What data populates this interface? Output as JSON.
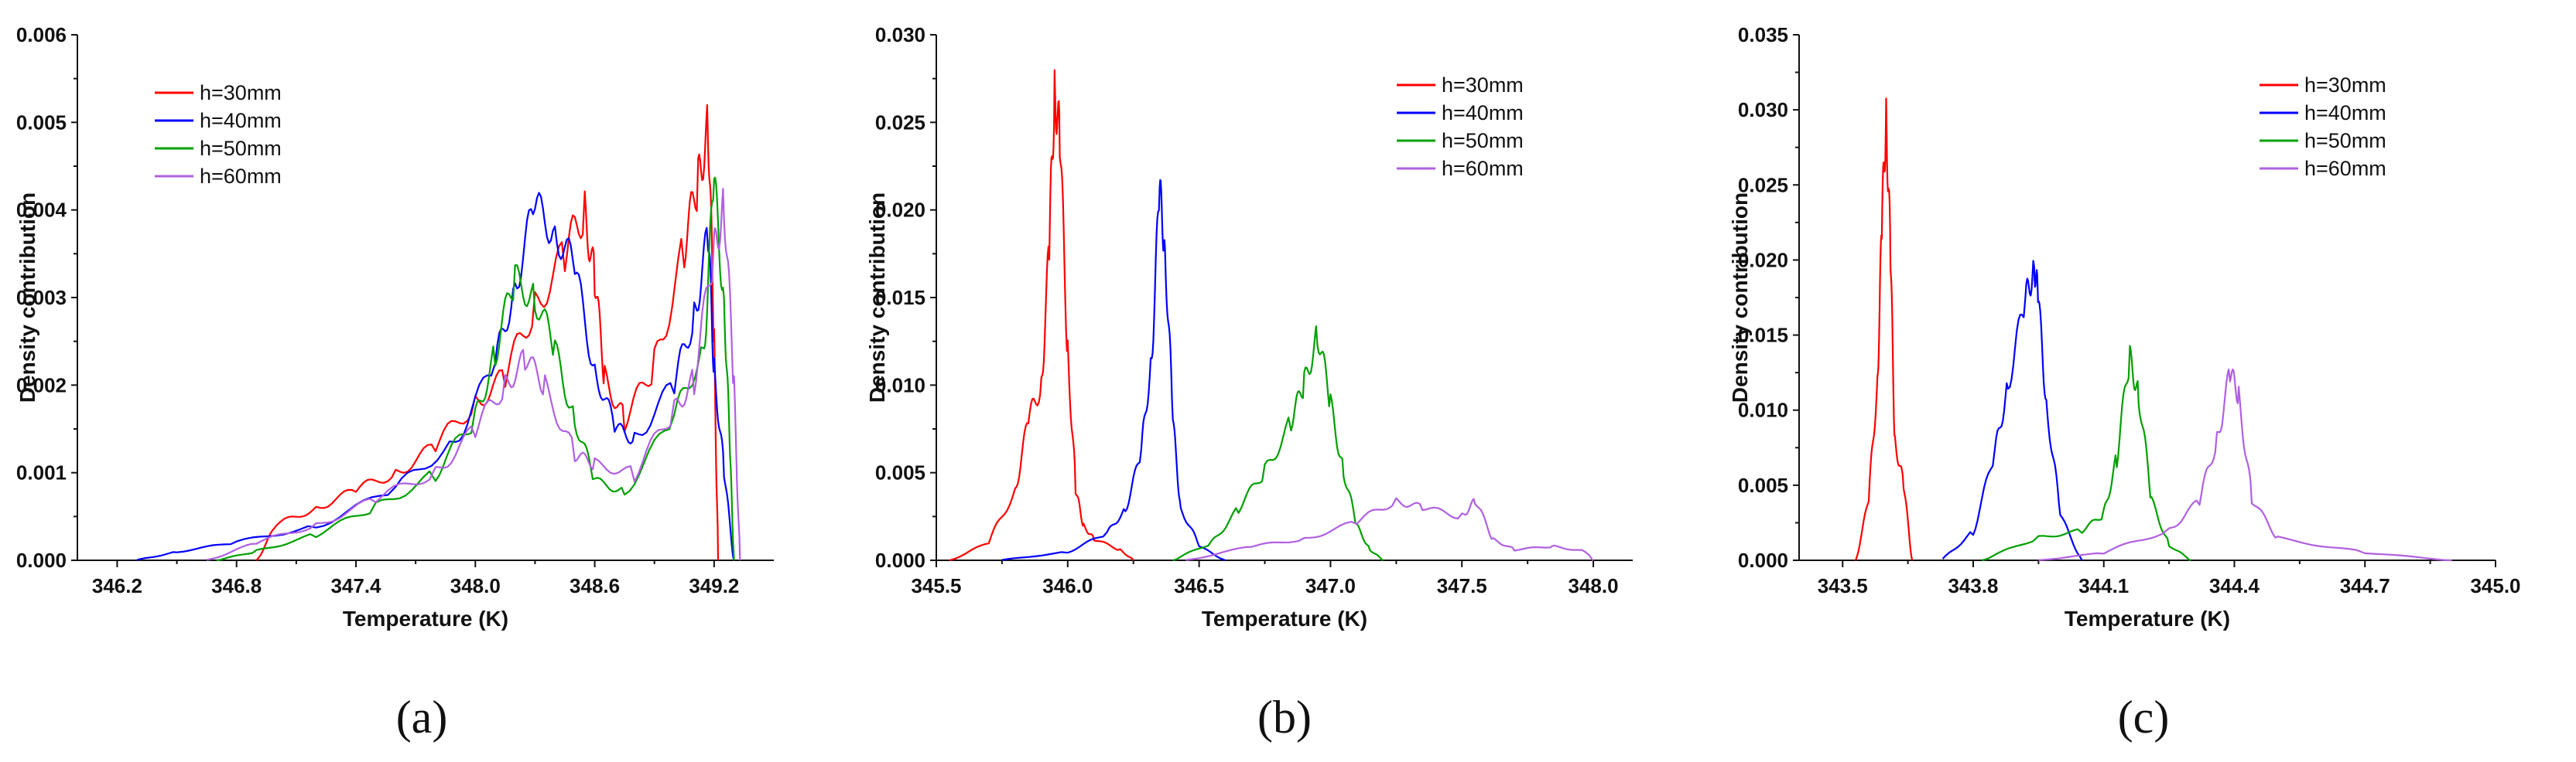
{
  "chart_data": [
    {
      "type": "line",
      "panel_label": "(a)",
      "xlabel": "Temperature (K)",
      "ylabel": "Density contribution",
      "xlim": [
        346.0,
        349.5
      ],
      "ylim": [
        0,
        0.006
      ],
      "xticks": [
        346.2,
        346.8,
        347.4,
        348.0,
        348.6,
        349.2
      ],
      "xtick_labels": [
        "346.2",
        "346.8",
        "347.4",
        "348.0",
        "348.6",
        "349.2"
      ],
      "yticks": [
        0,
        0.001,
        0.002,
        0.003,
        0.004,
        0.005,
        0.006
      ],
      "ytick_labels": [
        "0.000",
        "0.001",
        "0.002",
        "0.003",
        "0.004",
        "0.005",
        "0.006"
      ],
      "legend_position": "top-left",
      "series": [
        {
          "name": "h=30mm",
          "color": "#ff0000",
          "x": [
            346.9,
            347.0,
            347.2,
            347.4,
            347.6,
            347.8,
            348.0,
            348.15,
            348.3,
            348.45,
            348.55,
            348.6,
            348.65,
            348.75,
            348.9,
            349.05,
            349.12,
            349.17,
            349.2,
            349.22
          ],
          "y": [
            0.0,
            0.0004,
            0.0006,
            0.0008,
            0.001,
            0.0013,
            0.0018,
            0.0021,
            0.0029,
            0.0035,
            0.004,
            0.0032,
            0.0021,
            0.0016,
            0.0022,
            0.0036,
            0.0043,
            0.005,
            0.0025,
            0.0
          ]
        },
        {
          "name": "h=40mm",
          "color": "#0000ff",
          "x": [
            346.3,
            346.5,
            346.8,
            347.2,
            347.6,
            347.9,
            348.1,
            348.2,
            348.3,
            348.4,
            348.5,
            348.6,
            348.7,
            348.8,
            349.0,
            349.1,
            349.17,
            349.2,
            349.25,
            349.3
          ],
          "y": [
            0.0,
            0.0001,
            0.0002,
            0.0004,
            0.0008,
            0.0014,
            0.0022,
            0.0032,
            0.004,
            0.0038,
            0.0033,
            0.0022,
            0.0015,
            0.0014,
            0.002,
            0.0028,
            0.0037,
            0.0022,
            0.001,
            0.0
          ]
        },
        {
          "name": "h=50mm",
          "color": "#00a000",
          "x": [
            346.7,
            346.9,
            347.2,
            347.5,
            347.8,
            348.0,
            348.1,
            348.2,
            348.3,
            348.4,
            348.5,
            348.6,
            348.75,
            349.0,
            349.15,
            349.2,
            349.25,
            349.28,
            349.3
          ],
          "y": [
            0.0,
            0.0001,
            0.0003,
            0.0006,
            0.001,
            0.0016,
            0.0024,
            0.0032,
            0.003,
            0.0024,
            0.0016,
            0.0009,
            0.0008,
            0.0016,
            0.0025,
            0.0043,
            0.003,
            0.0012,
            0.0
          ]
        },
        {
          "name": "h=60mm",
          "color": "#b060e0",
          "x": [
            346.65,
            346.9,
            347.2,
            347.5,
            347.8,
            348.0,
            348.15,
            348.25,
            348.35,
            348.5,
            348.6,
            348.8,
            349.0,
            349.1,
            349.2,
            349.25,
            349.3,
            349.33
          ],
          "y": [
            0.0,
            0.0002,
            0.0004,
            0.0007,
            0.001,
            0.0015,
            0.002,
            0.0023,
            0.002,
            0.0012,
            0.0011,
            0.001,
            0.0017,
            0.0021,
            0.0035,
            0.0041,
            0.002,
            0.0
          ]
        }
      ]
    },
    {
      "type": "line",
      "panel_label": "(b)",
      "xlabel": "Temperature (K)",
      "ylabel": "Density contribution",
      "xlim": [
        345.5,
        348.15
      ],
      "ylim": [
        0,
        0.03
      ],
      "xticks": [
        345.5,
        346.0,
        346.5,
        347.0,
        347.5,
        348.0
      ],
      "xtick_labels": [
        "345.5",
        "346.0",
        "346.5",
        "347.0",
        "347.5",
        "348.0"
      ],
      "yticks": [
        0,
        0.005,
        0.01,
        0.015,
        0.02,
        0.025,
        0.03
      ],
      "ytick_labels": [
        "0.000",
        "0.005",
        "0.010",
        "0.015",
        "0.020",
        "0.025",
        "0.030"
      ],
      "legend_position": "top-right",
      "series": [
        {
          "name": "h=30mm",
          "color": "#ff0000",
          "x": [
            345.55,
            345.7,
            345.8,
            345.85,
            345.9,
            345.93,
            345.95,
            345.97,
            346.0,
            346.03,
            346.06,
            346.1,
            346.2,
            346.25
          ],
          "y": [
            0.0,
            0.001,
            0.004,
            0.008,
            0.01,
            0.018,
            0.027,
            0.024,
            0.012,
            0.004,
            0.002,
            0.0012,
            0.0006,
            0.0
          ]
        },
        {
          "name": "h=40mm",
          "color": "#0000ff",
          "x": [
            345.75,
            346.0,
            346.15,
            346.22,
            346.28,
            346.32,
            346.35,
            346.37,
            346.4,
            346.43,
            346.5,
            346.6
          ],
          "y": [
            0.0,
            0.0005,
            0.0015,
            0.003,
            0.006,
            0.012,
            0.021,
            0.018,
            0.008,
            0.003,
            0.0008,
            0.0
          ]
        },
        {
          "name": "h=50mm",
          "color": "#00a000",
          "x": [
            346.4,
            346.55,
            346.65,
            346.75,
            346.85,
            346.9,
            346.95,
            347.0,
            347.05,
            347.1,
            347.15,
            347.2
          ],
          "y": [
            0.0,
            0.001,
            0.003,
            0.005,
            0.008,
            0.01,
            0.013,
            0.009,
            0.005,
            0.002,
            0.0006,
            0.0
          ]
        },
        {
          "name": "h=60mm",
          "color": "#b060e0",
          "x": [
            346.45,
            346.7,
            346.9,
            347.1,
            347.25,
            347.35,
            347.5,
            347.55,
            347.62,
            347.7,
            347.85,
            347.97,
            348.0
          ],
          "y": [
            0.0,
            0.0008,
            0.0012,
            0.0022,
            0.0034,
            0.003,
            0.0025,
            0.0034,
            0.0012,
            0.0006,
            0.0008,
            0.0005,
            0.0
          ]
        }
      ]
    },
    {
      "type": "line",
      "panel_label": "(c)",
      "xlabel": "Temperature (K)",
      "ylabel": "Density contribution",
      "xlim": [
        343.4,
        345.0
      ],
      "ylim": [
        0,
        0.035
      ],
      "xticks": [
        343.5,
        343.8,
        344.1,
        344.4,
        344.7,
        345.0
      ],
      "xtick_labels": [
        "343.5",
        "343.8",
        "344.1",
        "344.4",
        "344.7",
        "345.0"
      ],
      "yticks": [
        0,
        0.005,
        0.01,
        0.015,
        0.02,
        0.025,
        0.03,
        0.035
      ],
      "ytick_labels": [
        "0.000",
        "0.005",
        "0.010",
        "0.015",
        "0.020",
        "0.025",
        "0.030",
        "0.035"
      ],
      "legend_position": "top-right",
      "series": [
        {
          "name": "h=30mm",
          "color": "#ff0000",
          "x": [
            343.53,
            343.56,
            343.58,
            343.59,
            343.6,
            343.61,
            343.62,
            343.64,
            343.66
          ],
          "y": [
            0.0,
            0.004,
            0.012,
            0.022,
            0.03,
            0.02,
            0.008,
            0.005,
            0.0
          ]
        },
        {
          "name": "h=40mm",
          "color": "#0000ff",
          "x": [
            343.73,
            343.8,
            343.85,
            343.88,
            343.92,
            343.94,
            343.95,
            343.97,
            344.0,
            344.05
          ],
          "y": [
            0.0,
            0.002,
            0.007,
            0.012,
            0.017,
            0.02,
            0.017,
            0.01,
            0.003,
            0.0
          ]
        },
        {
          "name": "h=50mm",
          "color": "#00a000",
          "x": [
            343.82,
            343.95,
            344.05,
            344.1,
            344.13,
            344.16,
            344.18,
            344.21,
            344.25,
            344.3
          ],
          "y": [
            0.0,
            0.0015,
            0.002,
            0.003,
            0.007,
            0.0135,
            0.011,
            0.004,
            0.001,
            0.0
          ]
        },
        {
          "name": "h=60mm",
          "color": "#b060e0",
          "x": [
            343.95,
            344.1,
            344.25,
            344.32,
            344.36,
            344.39,
            344.41,
            344.44,
            344.5,
            344.7,
            344.9
          ],
          "y": [
            0.0,
            0.0005,
            0.002,
            0.004,
            0.008,
            0.0125,
            0.011,
            0.004,
            0.0015,
            0.0005,
            0.0
          ]
        }
      ]
    }
  ]
}
